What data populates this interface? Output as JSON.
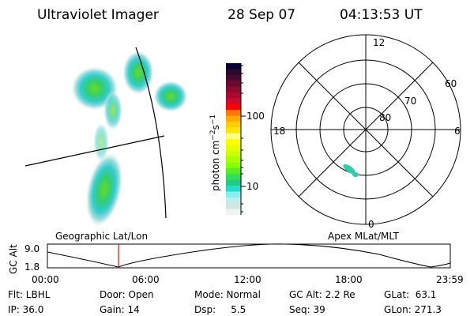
{
  "header": {
    "instrument": "Ultraviolet Imager",
    "date": "28 Sep 07",
    "time": "04:13:53 UT"
  },
  "colorbar": {
    "unit_label": "photon cm",
    "unit_exp1": "−2",
    "unit_s": "s",
    "unit_exp2": "−1",
    "tick_labels": [
      "100",
      "10"
    ],
    "colors": [
      "#000033",
      "#2a0a2a",
      "#4a0a30",
      "#6a0a30",
      "#8a0a30",
      "#aa0a30",
      "#cc0a30",
      "#ff0000",
      "#ff7700",
      "#ffaa00",
      "#ffcc00",
      "#ffe600",
      "#ffff88",
      "#ffff00",
      "#e6ff00",
      "#ccff00",
      "#aaff00",
      "#88ff00",
      "#55ee22",
      "#33dd55",
      "#22cc88",
      "#22ddcc",
      "#88eeee",
      "#bbeeee",
      "#d8e4e4",
      "#eef4f0"
    ]
  },
  "polar": {
    "mlt_labels": [
      "12",
      "18",
      "6",
      "0"
    ],
    "lat_labels": [
      "60",
      "70",
      "80"
    ]
  },
  "timeline": {
    "left_title": "Geographic Lat/Lon",
    "right_title": "Apex MLat/MLT",
    "y_label": "GC Alt",
    "y_ticks": [
      "9.0",
      "1.8"
    ],
    "x_ticks": [
      "00:00",
      "06:00",
      "12:00",
      "18:00",
      "23:59"
    ],
    "current_time_marker": "04:13:53",
    "marker_color": "#ff0000"
  },
  "status": {
    "row1": [
      "Flt: LBHL",
      "Door: Open",
      "Mode: Normal",
      "GC Alt: 2.2 Re",
      "GLat:  63.1"
    ],
    "row2": [
      "IP: 36.0",
      "Gain: 14",
      "Dsp:     5.5",
      "Seq: 39",
      "GLon: 271.3"
    ]
  }
}
